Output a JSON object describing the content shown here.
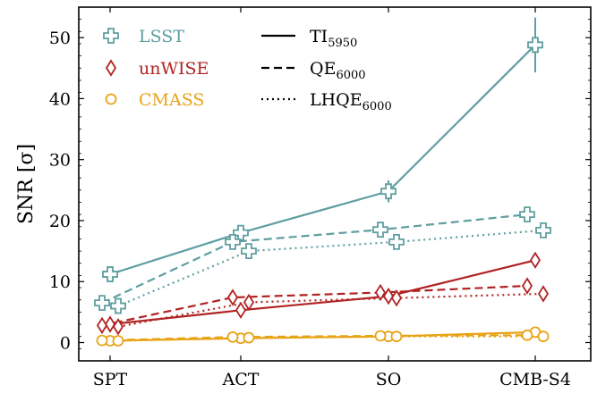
{
  "chart_data": {
    "type": "line",
    "categories": [
      "SPT",
      "ACT",
      "SO",
      "CMB-S4"
    ],
    "ylabel": "SNR [σ]",
    "xlabel": "",
    "ylim": [
      -3,
      55
    ],
    "yticks": [
      0,
      10,
      20,
      30,
      40,
      50
    ],
    "grid": false,
    "colors": {
      "LSST": "#5f9ea0",
      "unWISE": "#b22222",
      "CMASS": "#e8a317"
    },
    "legend_tracers": [
      {
        "label": "LSST",
        "marker": "plus",
        "color": "#5f9ea0"
      },
      {
        "label": "unWISE",
        "marker": "diamond",
        "color": "#b22222"
      },
      {
        "label": "CMASS",
        "marker": "circle",
        "color": "#e8a317"
      }
    ],
    "legend_estimators": [
      {
        "main": "TI",
        "sub": "5950",
        "style": "solid"
      },
      {
        "main": "QE",
        "sub": "6000",
        "style": "dashed"
      },
      {
        "main": "LHQE",
        "sub": "6000",
        "style": "dotted"
      }
    ],
    "legend_placement": "top-left",
    "series": [
      {
        "tracer": "LSST",
        "estimator": "TI",
        "marker": "plus",
        "style": "solid",
        "color": "#5f9ea0",
        "offset": 0,
        "values": [
          11.2,
          18.0,
          24.8,
          48.8
        ],
        "errors": [
          0.6,
          0.8,
          1.8,
          4.5
        ]
      },
      {
        "tracer": "LSST",
        "estimator": "QE",
        "marker": "plus",
        "style": "dashed",
        "color": "#5f9ea0",
        "offset": -1,
        "values": [
          6.5,
          16.5,
          18.5,
          21.0
        ],
        "errors": [
          0.6,
          0.7,
          0.7,
          1.2
        ]
      },
      {
        "tracer": "LSST",
        "estimator": "LHQE",
        "marker": "plus",
        "style": "dotted",
        "color": "#5f9ea0",
        "offset": 1,
        "values": [
          6.0,
          15.0,
          16.5,
          18.4
        ],
        "errors": [
          0.6,
          0.7,
          0.7,
          1.2
        ]
      },
      {
        "tracer": "unWISE",
        "estimator": "TI",
        "marker": "diamond",
        "style": "solid",
        "color": "#b22222",
        "offset": 0,
        "values": [
          3.0,
          5.3,
          7.6,
          13.5
        ],
        "errors": [
          0,
          0,
          0,
          0
        ]
      },
      {
        "tracer": "unWISE",
        "estimator": "QE",
        "marker": "diamond",
        "style": "dashed",
        "color": "#b22222",
        "offset": -1,
        "values": [
          2.8,
          7.4,
          8.2,
          9.3
        ],
        "errors": [
          0,
          0,
          0,
          0
        ]
      },
      {
        "tracer": "unWISE",
        "estimator": "LHQE",
        "marker": "diamond",
        "style": "dotted",
        "color": "#b22222",
        "offset": 1,
        "values": [
          2.6,
          6.6,
          7.3,
          8.0
        ],
        "errors": [
          0,
          0,
          0,
          0
        ]
      },
      {
        "tracer": "CMASS",
        "estimator": "TI",
        "marker": "circle",
        "style": "solid",
        "color": "#e8a317",
        "offset": 0,
        "values": [
          0.3,
          0.7,
          1.0,
          1.7
        ],
        "errors": [
          0,
          0,
          0,
          0
        ]
      },
      {
        "tracer": "CMASS",
        "estimator": "QE",
        "marker": "circle",
        "style": "dashed",
        "color": "#e8a317",
        "offset": -1,
        "values": [
          0.35,
          0.9,
          1.1,
          1.2
        ],
        "errors": [
          0,
          0,
          0,
          0
        ]
      },
      {
        "tracer": "CMASS",
        "estimator": "LHQE",
        "marker": "circle",
        "style": "dotted",
        "color": "#e8a317",
        "offset": 1,
        "values": [
          0.3,
          0.8,
          1.0,
          1.0
        ],
        "errors": [
          0,
          0,
          0,
          0
        ]
      }
    ]
  }
}
